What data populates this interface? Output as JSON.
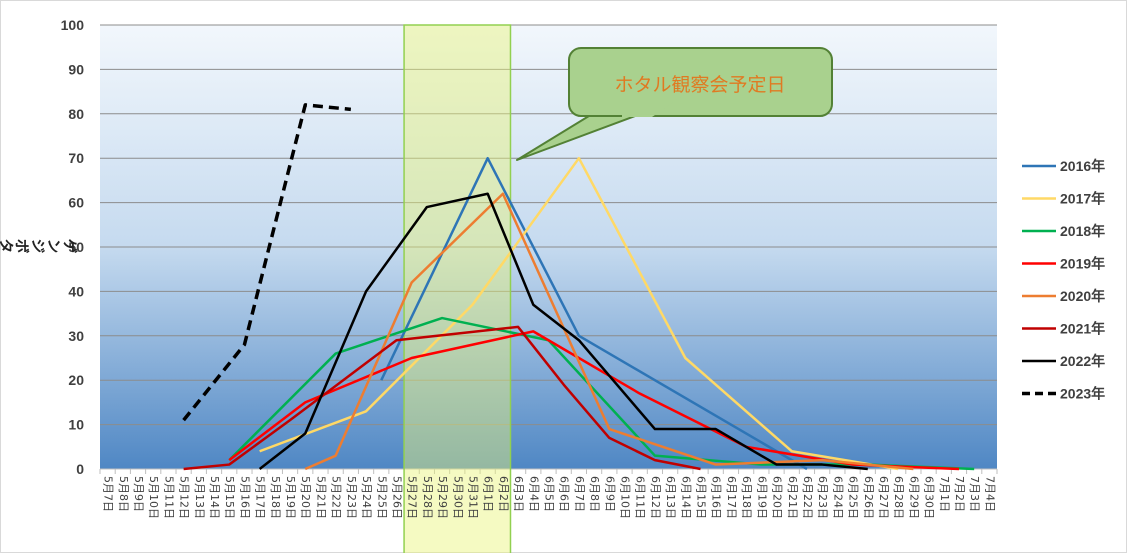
{
  "chart_data": {
    "type": "line",
    "ylabel": "ゲンジボタル",
    "ylim": [
      0,
      100
    ],
    "yticks": [
      0,
      10,
      20,
      30,
      40,
      50,
      60,
      70,
      80,
      90,
      100
    ],
    "grid": true,
    "legend_position": "right",
    "x": [
      "5月7日",
      "5月8日",
      "5月9日",
      "5月10日",
      "5月11日",
      "5月12日",
      "5月13日",
      "5月14日",
      "5月15日",
      "5月16日",
      "5月17日",
      "5月18日",
      "5月19日",
      "5月20日",
      "5月21日",
      "5月22日",
      "5月23日",
      "5月24日",
      "5月25日",
      "5月26日",
      "5月27日",
      "5月28日",
      "5月29日",
      "5月30日",
      "5月31日",
      "6月1日",
      "6月2日",
      "6月3日",
      "6月4日",
      "6月5日",
      "6月6日",
      "6月7日",
      "6月8日",
      "6月9日",
      "6月10日",
      "6月11日",
      "6月12日",
      "6月13日",
      "6月14日",
      "6月15日",
      "6月16日",
      "6月17日",
      "6月18日",
      "6月19日",
      "6月20日",
      "6月21日",
      "6月22日",
      "6月23日",
      "6月24日",
      "6月25日",
      "6月26日",
      "6月27日",
      "6月28日",
      "6月29日",
      "6月30日",
      "7月1日",
      "7月2日",
      "7月3日",
      "7月4日"
    ],
    "highlight": {
      "from": "5月27日",
      "to": "6月2日"
    },
    "annotation": "ホタル観察会予定日",
    "series": [
      {
        "name": "2016年",
        "color": "#2e75b6",
        "dash": false,
        "points": [
          [
            "5月25日",
            20
          ],
          [
            "6月1日",
            70
          ],
          [
            "6月7日",
            30
          ],
          [
            "6月22日",
            0
          ]
        ]
      },
      {
        "name": "2017年",
        "color": "#ffd966",
        "dash": false,
        "points": [
          [
            "5月17日",
            4
          ],
          [
            "5月24日",
            13
          ],
          [
            "5月31日",
            37
          ],
          [
            "6月7日",
            70
          ],
          [
            "6月14日",
            25
          ],
          [
            "6月21日",
            4
          ],
          [
            "6月28日",
            0
          ]
        ]
      },
      {
        "name": "2018年",
        "color": "#00b050",
        "dash": false,
        "points": [
          [
            "5月15日",
            2
          ],
          [
            "5月22日",
            26
          ],
          [
            "5月29日",
            34
          ],
          [
            "6月5日",
            29
          ],
          [
            "6月12日",
            3
          ],
          [
            "6月19日",
            1
          ],
          [
            "6月26日",
            1
          ],
          [
            "7月3日",
            0
          ]
        ]
      },
      {
        "name": "2019年",
        "color": "#ff0000",
        "dash": false,
        "points": [
          [
            "5月15日",
            2
          ],
          [
            "5月20日",
            15
          ],
          [
            "5月27日",
            25
          ],
          [
            "6月4日",
            31
          ],
          [
            "6月11日",
            17
          ],
          [
            "6月18日",
            5
          ],
          [
            "6月25日",
            1
          ],
          [
            "7月2日",
            0
          ]
        ]
      },
      {
        "name": "2020年",
        "color": "#ed7d31",
        "dash": false,
        "points": [
          [
            "5月20日",
            0
          ],
          [
            "5月22日",
            3
          ],
          [
            "5月27日",
            42
          ],
          [
            "6月2日",
            62
          ],
          [
            "6月9日",
            9
          ],
          [
            "6月16日",
            1
          ],
          [
            "6月23日",
            2
          ],
          [
            "6月29日",
            0
          ]
        ]
      },
      {
        "name": "2021年",
        "color": "#c00000",
        "dash": false,
        "points": [
          [
            "5月12日",
            0
          ],
          [
            "5月15日",
            1
          ],
          [
            "5月19日",
            11
          ],
          [
            "5月26日",
            29
          ],
          [
            "6月3日",
            32
          ],
          [
            "6月6日",
            19
          ],
          [
            "6月9日",
            7
          ],
          [
            "6月12日",
            2
          ],
          [
            "6月15日",
            0
          ]
        ]
      },
      {
        "name": "2022年",
        "color": "#000000",
        "dash": false,
        "points": [
          [
            "5月17日",
            0
          ],
          [
            "5月20日",
            8
          ],
          [
            "5月24日",
            40
          ],
          [
            "5月28日",
            59
          ],
          [
            "6月1日",
            62
          ],
          [
            "6月4日",
            37
          ],
          [
            "6月7日",
            29
          ],
          [
            "6月12日",
            9
          ],
          [
            "6月16日",
            9
          ],
          [
            "6月20日",
            1
          ],
          [
            "6月23日",
            1
          ],
          [
            "6月26日",
            0
          ]
        ]
      },
      {
        "name": "2023年",
        "color": "#000000",
        "dash": true,
        "points": [
          [
            "5月12日",
            11
          ],
          [
            "5月16日",
            28
          ],
          [
            "5月20日",
            82
          ],
          [
            "5月23日",
            81
          ]
        ]
      }
    ]
  }
}
